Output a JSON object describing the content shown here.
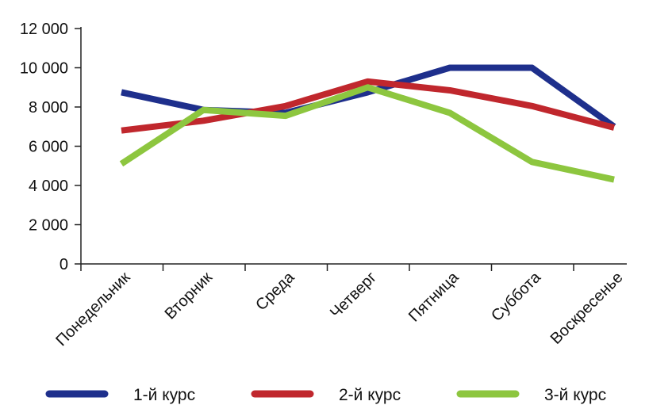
{
  "chart_data": {
    "type": "line",
    "title": "",
    "xlabel": "",
    "ylabel": "",
    "categories": [
      "Понедельник",
      "Вторник",
      "Среда",
      "Четверг",
      "Пятница",
      "Суббота",
      "Воскресенье"
    ],
    "ylim": [
      0,
      12000
    ],
    "yticks": [
      0,
      2000,
      4000,
      6000,
      8000,
      10000,
      12000
    ],
    "ytick_labels": [
      "0",
      "2 000",
      "4 000",
      "6 000",
      "8 000",
      "10 000",
      "12 000"
    ],
    "grid": false,
    "legend_position": "bottom",
    "series": [
      {
        "name": "1-й курс",
        "color": "#1e2f8c",
        "values": [
          8750,
          7850,
          7700,
          8750,
          10000,
          10000,
          7000
        ]
      },
      {
        "name": "2-й курс",
        "color": "#c0272d",
        "values": [
          6800,
          7300,
          8050,
          9300,
          8850,
          8050,
          6950
        ]
      },
      {
        "name": "3-й курс",
        "color": "#8dc63f",
        "values": [
          5100,
          7850,
          7550,
          9000,
          7700,
          5200,
          4300
        ]
      }
    ]
  }
}
